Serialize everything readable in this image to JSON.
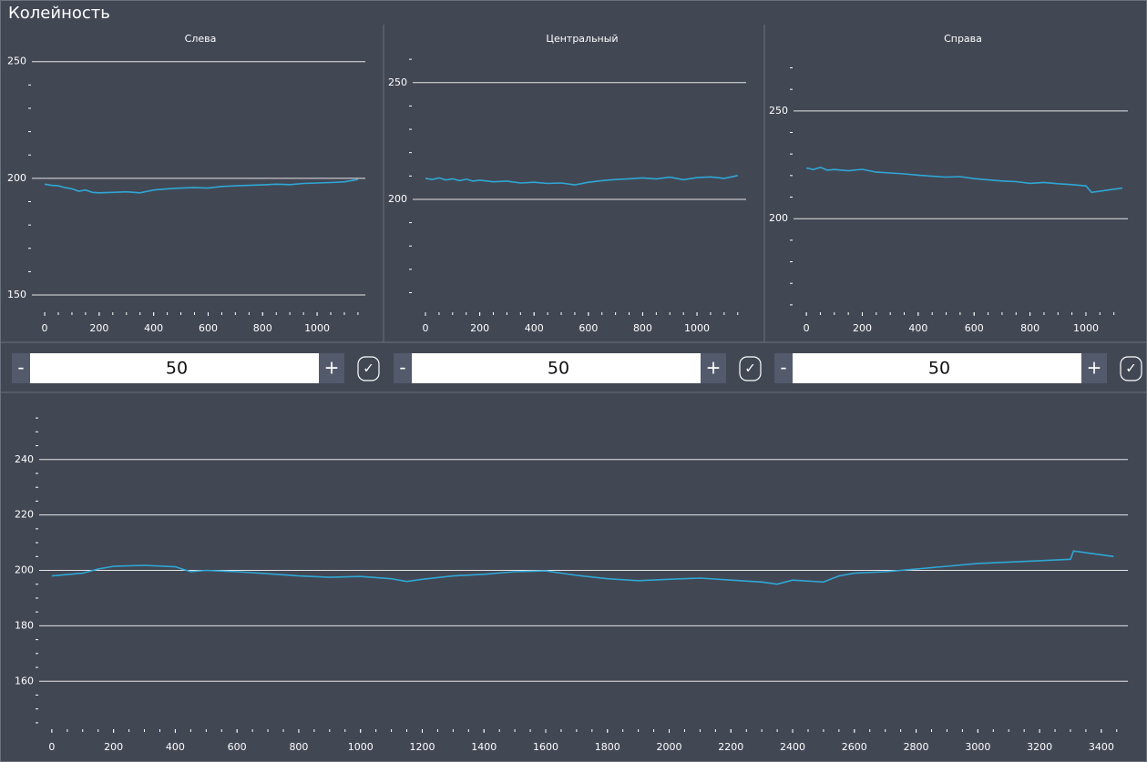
{
  "window": {
    "title": "Колейность"
  },
  "chart_data": [
    {
      "type": "line",
      "title": "Слева",
      "x": [
        0,
        25,
        50,
        75,
        100,
        125,
        150,
        175,
        200,
        250,
        300,
        350,
        400,
        450,
        500,
        550,
        600,
        650,
        700,
        750,
        800,
        850,
        900,
        950,
        1000,
        1050,
        1100,
        1150
      ],
      "series": [
        {
          "color": "#2fa7d4",
          "values": [
            197.5,
            197,
            196.8,
            196,
            195.5,
            194.5,
            195,
            194,
            193.8,
            194,
            194.2,
            193.8,
            195,
            195.5,
            195.8,
            196,
            195.8,
            196.5,
            196.8,
            197,
            197.2,
            197.5,
            197.3,
            197.8,
            198,
            198.2,
            198.5,
            199.5
          ]
        }
      ],
      "xlim": [
        -47,
        1177
      ],
      "xticks": [
        0,
        200,
        400,
        600,
        800,
        1000
      ],
      "xminor_step": 50,
      "ylim": [
        143,
        253
      ],
      "yticks": [
        150,
        200,
        250
      ],
      "yminor_step": 10,
      "grid": true
    },
    {
      "type": "line",
      "title": "Центральный",
      "x": [
        0,
        25,
        50,
        75,
        100,
        125,
        150,
        175,
        200,
        250,
        300,
        350,
        400,
        450,
        500,
        550,
        600,
        650,
        700,
        750,
        800,
        850,
        900,
        950,
        1000,
        1050,
        1100,
        1150
      ],
      "series": [
        {
          "color": "#2fa7d4",
          "values": [
            209,
            208.5,
            209.2,
            208.3,
            208.8,
            208,
            208.6,
            207.8,
            208.2,
            207.5,
            207.8,
            207,
            207.3,
            206.8,
            207,
            206.2,
            207.3,
            208,
            208.5,
            208.8,
            209.2,
            208.7,
            209.5,
            208.4,
            209.3,
            209.6,
            209,
            210.2
          ]
        }
      ],
      "xlim": [
        -47,
        1181
      ],
      "xticks": [
        0,
        200,
        400,
        600,
        800,
        1000
      ],
      "xminor_step": 50,
      "ylim": [
        152,
        262
      ],
      "yticks": [
        200,
        250
      ],
      "yminor_step": 10,
      "grid": true
    },
    {
      "type": "line",
      "title": "Справа",
      "x": [
        0,
        25,
        50,
        75,
        100,
        150,
        200,
        250,
        300,
        350,
        400,
        450,
        500,
        550,
        600,
        650,
        700,
        750,
        800,
        850,
        900,
        950,
        1000,
        1020,
        1130
      ],
      "series": [
        {
          "color": "#2fa7d4",
          "values": [
            223.5,
            222.8,
            223.8,
            222.5,
            222.8,
            222.2,
            222.9,
            221.6,
            221.2,
            220.8,
            220.2,
            219.7,
            219.3,
            219.5,
            218.6,
            218,
            217.5,
            217.2,
            216.4,
            216.8,
            216.2,
            215.8,
            215.2,
            212.2,
            214.2
          ]
        }
      ],
      "xlim": [
        -46,
        1150
      ],
      "xticks": [
        0,
        200,
        400,
        600,
        800,
        1000
      ],
      "xminor_step": 50,
      "ylim": [
        157,
        274
      ],
      "yticks": [
        200,
        250
      ],
      "yminor_step": 10,
      "grid": true
    },
    {
      "type": "line",
      "x": [
        0,
        100,
        150,
        200,
        300,
        400,
        450,
        500,
        600,
        700,
        800,
        900,
        1000,
        1100,
        1150,
        1200,
        1300,
        1400,
        1500,
        1600,
        1700,
        1800,
        1900,
        2000,
        2100,
        2200,
        2300,
        2350,
        2400,
        2500,
        2550,
        2600,
        2700,
        2800,
        2900,
        3000,
        3100,
        3200,
        3300,
        3310,
        3440
      ],
      "series": [
        {
          "color": "#2fa7d4",
          "values": [
            198,
            199,
            200.5,
            201.5,
            201.8,
            201.3,
            199.5,
            200,
            199.5,
            198.8,
            198,
            197.5,
            197.8,
            197,
            196,
            196.8,
            198,
            198.6,
            199.5,
            199.8,
            198.2,
            197,
            196.3,
            196.8,
            197.2,
            196.5,
            195.8,
            195,
            196.5,
            195.8,
            198,
            199,
            199.5,
            200.5,
            201.5,
            202.5,
            203,
            203.5,
            204,
            207,
            205
          ]
        }
      ],
      "xlim": [
        -41,
        3486
      ],
      "xticks": [
        0,
        200,
        400,
        600,
        800,
        1000,
        1200,
        1400,
        1600,
        1800,
        2000,
        2200,
        2400,
        2600,
        2800,
        3000,
        3200,
        3400
      ],
      "xminor_step": 50,
      "ylim": [
        143,
        258
      ],
      "yticks": [
        160,
        180,
        200,
        220,
        240
      ],
      "yminor_step": 5,
      "grid": true
    }
  ],
  "steppers": [
    {
      "minus": "-",
      "value": 50,
      "plus": "+",
      "check": "✓"
    },
    {
      "minus": "-",
      "value": 50,
      "plus": "+",
      "check": "✓"
    },
    {
      "minus": "-",
      "value": 50,
      "plus": "+",
      "check": "✓"
    }
  ]
}
